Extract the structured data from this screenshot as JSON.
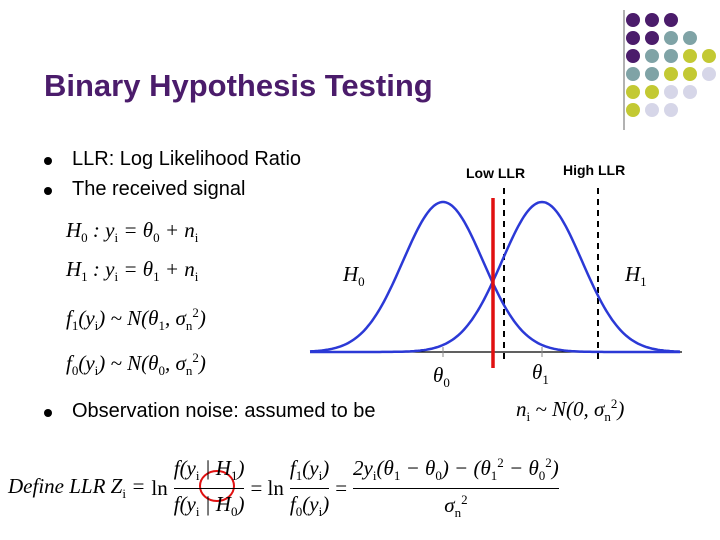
{
  "header": {
    "title": "Binary Hypothesis Testing"
  },
  "bullets": [
    "LLR: Log Likelihood Ratio",
    "The received signal",
    "Observation noise: assumed to be"
  ],
  "equations": [
    [
      "H",
      {
        "sub": "0"
      },
      " : y",
      {
        "sub": "i"
      },
      " = θ",
      {
        "sub": "0"
      },
      " + n",
      {
        "sub": "i"
      }
    ],
    [
      "H",
      {
        "sub": "1"
      },
      " : y",
      {
        "sub": "i"
      },
      " = θ",
      {
        "sub": "1"
      },
      " + n",
      {
        "sub": "i"
      }
    ],
    [
      "f",
      {
        "sub": "1"
      },
      "(y",
      {
        "sub": "i"
      },
      ") ~ N(θ",
      {
        "sub": "1"
      },
      ", σ",
      {
        "sub": "n"
      },
      {
        "sup": "2"
      },
      ")"
    ],
    [
      "f",
      {
        "sub": "0"
      },
      "(y",
      {
        "sub": "i"
      },
      ") ~ N(θ",
      {
        "sub": "0"
      },
      ", σ",
      {
        "sub": "n"
      },
      {
        "sup": "2"
      },
      ")"
    ]
  ],
  "noise_equation": [
    "n",
    {
      "sub": "i"
    },
    " ~ N(0, σ",
    {
      "sub": "n"
    },
    {
      "sup": "2"
    },
    ")"
  ],
  "figure": {
    "low_label": "Low LLR",
    "high_label": "High LLR",
    "h0": [
      "H",
      {
        "sub": "0"
      }
    ],
    "h1": [
      "H",
      {
        "sub": "1"
      }
    ],
    "theta0": [
      "θ",
      {
        "sub": "0"
      }
    ],
    "theta1": [
      "θ",
      {
        "sub": "1"
      }
    ]
  },
  "llr": {
    "lhs": [
      "Define LLR Z",
      {
        "sub": "i"
      },
      " ="
    ],
    "ln": "ln",
    "frac_1": {
      "numerator": [
        "f(y",
        {
          "sub": "i"
        },
        " | H",
        {
          "sub": "1"
        },
        ")"
      ],
      "denominator": [
        "f(y",
        {
          "sub": "i"
        },
        " | H",
        {
          "sub": "0"
        },
        ")"
      ]
    },
    "eq_ln": "= ln",
    "frac_2": {
      "numerator": [
        "f",
        {
          "sub": "1"
        },
        "(y",
        {
          "sub": "i"
        },
        ")"
      ],
      "denominator": [
        "f",
        {
          "sub": "0"
        },
        "(y",
        {
          "sub": "i"
        },
        ")"
      ]
    },
    "eq": "=",
    "frac_3": {
      "numerator": [
        "2y",
        {
          "sub": "i"
        },
        "(θ",
        {
          "sub": "1"
        },
        " − θ",
        {
          "sub": "0"
        },
        ") − (θ",
        {
          "sub": "1"
        },
        {
          "sup": "2"
        },
        " − θ",
        {
          "sub": "0"
        },
        {
          "sup": "2"
        },
        ")"
      ],
      "denominator": [
        "σ",
        {
          "sub": "n"
        },
        {
          "sup": "2"
        }
      ]
    }
  }
}
